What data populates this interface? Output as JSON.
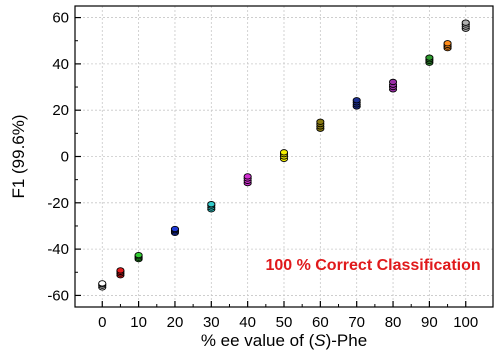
{
  "chart_data": {
    "type": "scatter",
    "xlabel_parts": [
      "% ee value of (",
      "S",
      ")-Phe"
    ],
    "ylabel": "F1 (99.6%)",
    "xlim": [
      -7.5,
      107.5
    ],
    "ylim": [
      -65,
      65
    ],
    "x_ticks": [
      "0",
      "10",
      "20",
      "30",
      "40",
      "50",
      "60",
      "70",
      "80",
      "90",
      "100"
    ],
    "y_ticks": [
      "60",
      "40",
      "20",
      "0",
      "-20",
      "-40",
      "-60"
    ],
    "grid": true,
    "annotation": "100 % Correct Classification",
    "annotation_color": "#e0191b",
    "series": [
      {
        "x": 0,
        "color": "#ffffff",
        "y": [
          -56.5,
          -55.8,
          -55.2,
          -54.8
        ]
      },
      {
        "x": 5,
        "color": "#e31a1c",
        "y": [
          -51.3,
          -50.5,
          -49.8,
          -49.2
        ]
      },
      {
        "x": 10,
        "color": "#33cc33",
        "y": [
          -44.3,
          -43.7,
          -43.1,
          -42.6
        ]
      },
      {
        "x": 20,
        "color": "#1f3bd6",
        "y": [
          -33.0,
          -32.4,
          -31.8,
          -31.3
        ]
      },
      {
        "x": 30,
        "color": "#33cccc",
        "y": [
          -22.8,
          -22.0,
          -21.2,
          -20.6
        ]
      },
      {
        "x": 40,
        "color": "#d12fd1",
        "y": [
          -11.5,
          -10.5,
          -9.5,
          -8.6
        ]
      },
      {
        "x": 50,
        "color": "#f5f000",
        "y": [
          -1.0,
          0.0,
          1.0,
          1.8
        ]
      },
      {
        "x": 60,
        "color": "#8a7a10",
        "y": [
          12.0,
          13.0,
          14.0,
          15.0
        ]
      },
      {
        "x": 70,
        "color": "#1c2f8f",
        "y": [
          21.6,
          22.5,
          23.4,
          24.3
        ]
      },
      {
        "x": 80,
        "color": "#9b2fa8",
        "y": [
          29.0,
          30.0,
          31.0,
          32.2
        ]
      },
      {
        "x": 90,
        "color": "#2e9a2e",
        "y": [
          40.5,
          41.3,
          42.0,
          42.7
        ]
      },
      {
        "x": 95,
        "color": "#ff8c1a",
        "y": [
          46.8,
          47.5,
          48.2,
          48.9
        ]
      },
      {
        "x": 100,
        "color": "#b0b0b0",
        "y": [
          55.2,
          56.1,
          57.0,
          57.8
        ]
      }
    ]
  }
}
